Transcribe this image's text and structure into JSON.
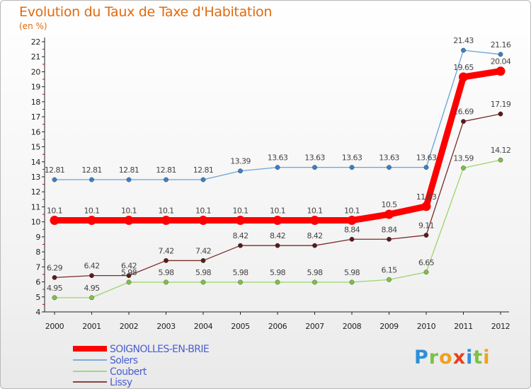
{
  "chart_data": {
    "type": "line",
    "title": "Evolution du Taux de Taxe d'Habitation",
    "subtitle": "(en %)",
    "x": [
      "2000",
      "2001",
      "2002",
      "2003",
      "2004",
      "2005",
      "2006",
      "2007",
      "2008",
      "2009",
      "2010",
      "2011",
      "2012"
    ],
    "ylim": [
      4,
      22
    ],
    "yticks": [
      4,
      5,
      6,
      7,
      8,
      9,
      10,
      11,
      12,
      13,
      14,
      15,
      16,
      17,
      18,
      19,
      20,
      21,
      22
    ],
    "grid": false,
    "legend": "bottom-left",
    "series": [
      {
        "name": "SOIGNOLLES-EN-BRIE",
        "color": "#ff0000",
        "text_color": "#4a5fd0",
        "values": [
          10.1,
          10.1,
          10.1,
          10.1,
          10.1,
          10.1,
          10.1,
          10.1,
          10.1,
          10.5,
          11.03,
          19.65,
          20.04
        ],
        "labels": [
          "10.1",
          "10.1",
          "10.1",
          "10.1",
          "10.1",
          "10.1",
          "10.1",
          "10.1",
          "10.1",
          "10.5",
          "11.03",
          "19.65",
          "20.04"
        ]
      },
      {
        "name": "Solers",
        "color": "#6ba3d6",
        "marker": "#3d7fc4",
        "text_color": "#4a5fd0",
        "values": [
          12.81,
          12.81,
          12.81,
          12.81,
          12.81,
          13.39,
          13.63,
          13.63,
          13.63,
          13.63,
          13.63,
          21.43,
          21.16
        ],
        "labels": [
          "12.81",
          "12.81",
          "12.81",
          "12.81",
          "12.81",
          "13.39",
          "13.63",
          "13.63",
          "13.63",
          "13.63",
          "13.63",
          "21.43",
          "21.16"
        ]
      },
      {
        "name": "Coubert",
        "color": "#9bd56b",
        "marker": "#7cc243",
        "text_color": "#4a5fd0",
        "values": [
          4.95,
          4.95,
          5.98,
          5.98,
          5.98,
          5.98,
          5.98,
          5.98,
          5.98,
          6.15,
          6.65,
          13.59,
          14.12
        ],
        "labels": [
          "4.95",
          "4.95",
          "5.98",
          "5.98",
          "5.98",
          "5.98",
          "5.98",
          "5.98",
          "5.98",
          "6.15",
          "6.65",
          "13.59",
          "14.12"
        ]
      },
      {
        "name": "Lissy",
        "color": "#7a2a2a",
        "marker": "#5a1a1a",
        "text_color": "#4a5fd0",
        "values": [
          6.29,
          6.42,
          6.42,
          7.42,
          7.42,
          8.42,
          8.42,
          8.42,
          8.84,
          8.84,
          9.11,
          16.69,
          17.19
        ],
        "labels": [
          "6.29",
          "6.42",
          "6.42",
          "7.42",
          "7.42",
          "8.42",
          "8.42",
          "8.42",
          "8.84",
          "8.84",
          "9.11",
          "16.69",
          "17.19"
        ]
      }
    ]
  },
  "brand": {
    "letters": [
      "P",
      "r",
      "o",
      "x",
      "i",
      "t",
      "i"
    ],
    "colors": [
      "#2e8fd8",
      "#7cc243",
      "#f0a020",
      "#e8401c",
      "#2e8fd8",
      "#7cc243",
      "#f0a020"
    ]
  }
}
